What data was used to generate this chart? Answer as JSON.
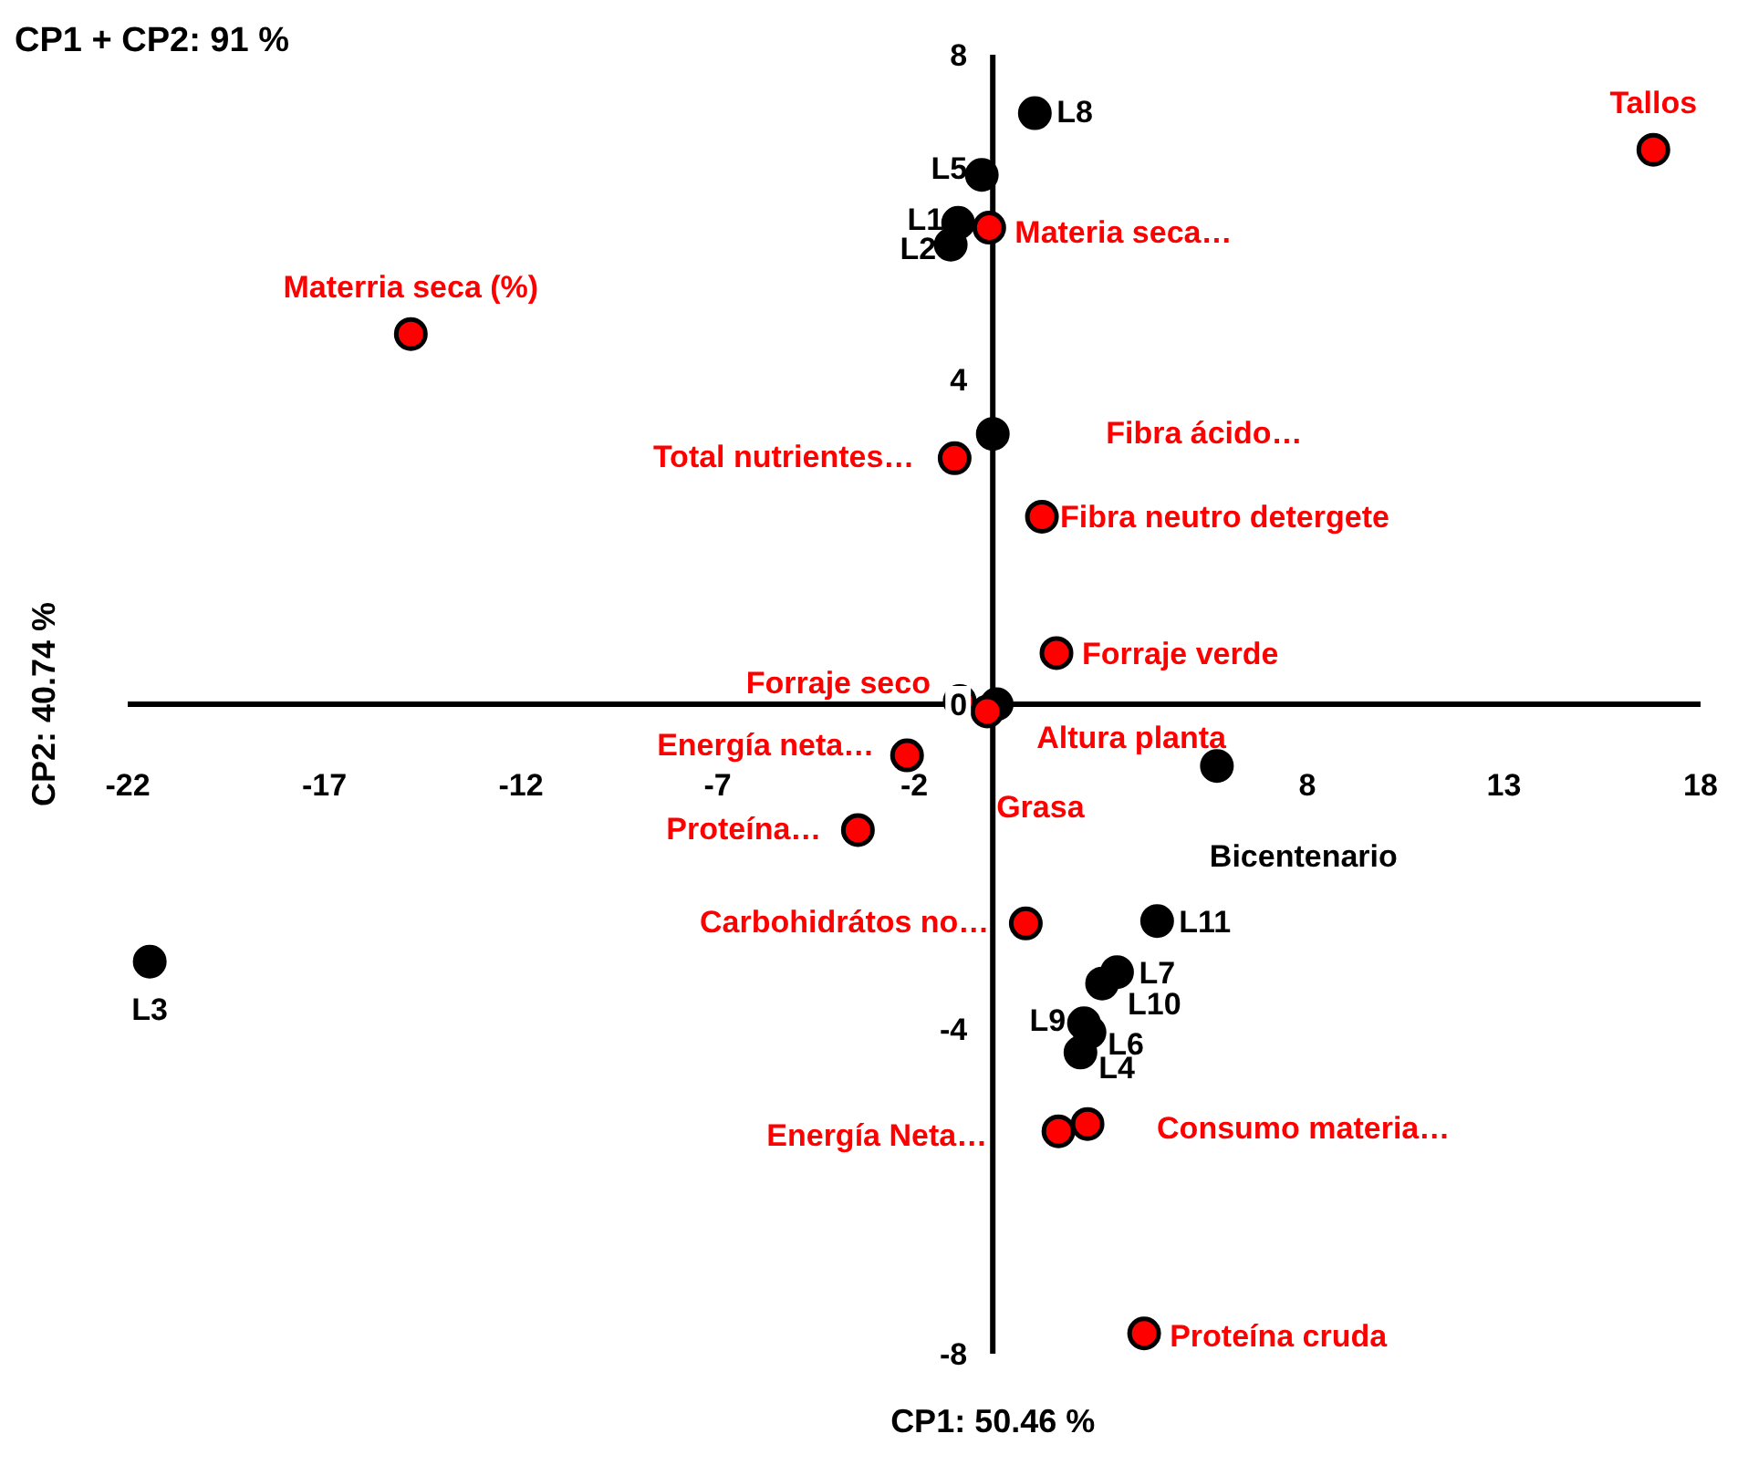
{
  "chart_data": {
    "type": "scatter",
    "title": "CP1 + CP2: 91 %",
    "xlabel": "CP1: 50.46 %",
    "ylabel": "CP2: 40.74 %",
    "xlim": [
      -22,
      18
    ],
    "xticks": [
      -22,
      -17,
      -12,
      -7,
      -2,
      8,
      13,
      18
    ],
    "ylim": [
      -8,
      8
    ],
    "yticks": [
      -8,
      -4,
      0,
      4,
      8
    ],
    "grid": false,
    "marker": "circle",
    "series": [
      {
        "color": "#000000",
        "x": [
          1.07,
          -0.28,
          -0.88,
          -1.07,
          0.0,
          0.1,
          -21.44,
          4.18,
          3.16,
          2.78,
          2.32,
          2.46,
          2.23,
          5.7
        ],
        "values": [
          7.28,
          6.52,
          5.93,
          5.66,
          3.33,
          0.0,
          -3.17,
          -2.67,
          -3.3,
          -3.44,
          -3.93,
          -4.04,
          -4.29,
          -0.76
        ],
        "value_labels": [
          "L8",
          "L5",
          "L1",
          "L2",
          null,
          null,
          "L3",
          "L11",
          "L7",
          "L10",
          "L9",
          "L6",
          "L4",
          "Bicentenario"
        ]
      },
      {
        "color": "#ff0000",
        "x": [
          16.8,
          -0.09,
          -14.8,
          -0.97,
          1.25,
          1.62,
          -0.84,
          -0.14,
          -2.18,
          -3.43,
          0.84,
          1.67,
          2.41,
          3.85
        ],
        "values": [
          6.83,
          5.87,
          4.56,
          3.03,
          2.31,
          0.63,
          0.04,
          -0.09,
          -0.63,
          -1.55,
          -2.7,
          -5.26,
          -5.17,
          -7.75
        ],
        "value_labels": [
          "Tallos",
          "Materia seca…",
          "Materria seca (%)",
          "Total nutrientes…",
          "Fibra neutro detergete",
          "Forraje verde",
          "Forraje seco",
          "Grasa",
          "Energía neta…",
          "Proteína…",
          "Carbohidrátos no…",
          "Energía Neta…",
          "Consumo materia…",
          "Proteína cruda"
        ]
      }
    ],
    "annotations": [
      "Fibra ácido…",
      "Altura planta"
    ]
  }
}
